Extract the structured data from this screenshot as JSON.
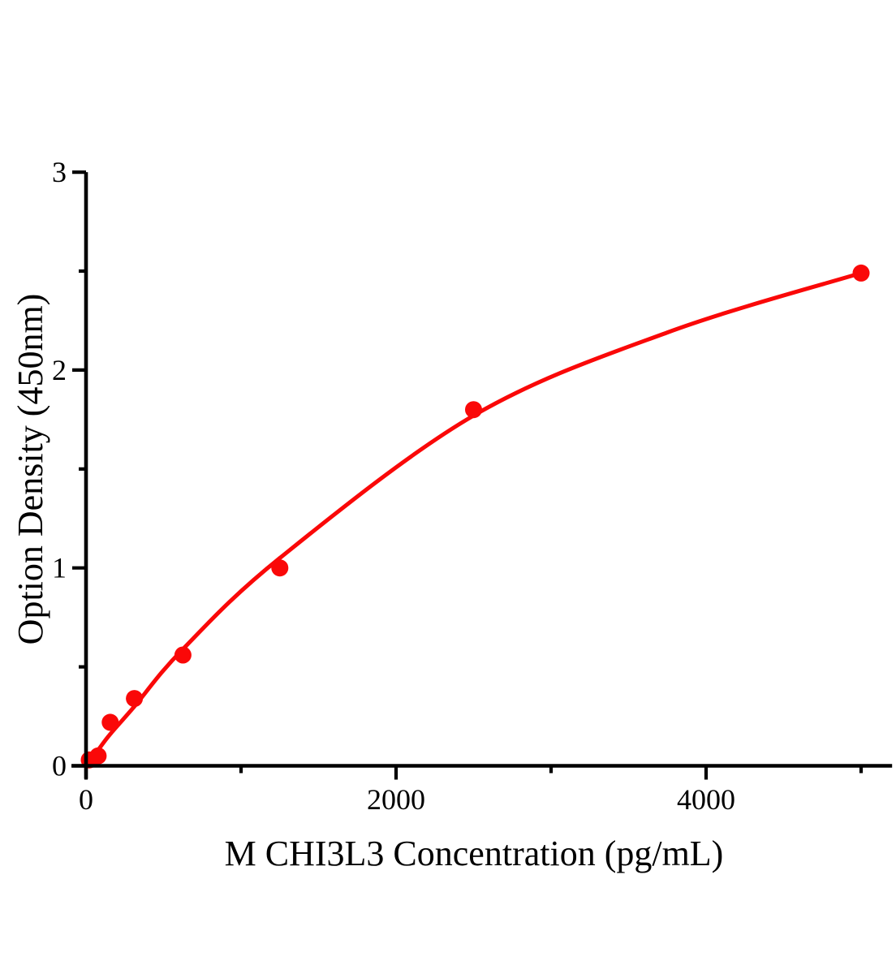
{
  "chart_data": {
    "type": "scatter",
    "title": "",
    "xlabel": "M CHI3L3 Concentration (pg/mL)",
    "ylabel": "Option Density (450nm)",
    "x": [
      78,
      156,
      312,
      625,
      1250,
      2500,
      5000
    ],
    "y": [
      0.05,
      0.22,
      0.34,
      0.56,
      1.0,
      1.8,
      2.49
    ],
    "blank_point": {
      "x": 0,
      "y": 0.03
    },
    "fit_curve": [
      [
        0,
        0.0
      ],
      [
        78,
        0.08
      ],
      [
        156,
        0.16
      ],
      [
        312,
        0.3
      ],
      [
        625,
        0.59
      ],
      [
        1250,
        1.05
      ],
      [
        2500,
        1.77
      ],
      [
        3750,
        2.19
      ],
      [
        5000,
        2.49
      ]
    ],
    "xlim": [
      0,
      5200
    ],
    "ylim": [
      0,
      3
    ],
    "x_major_ticks": [
      0,
      2000,
      4000
    ],
    "x_minor_ticks": [
      1000,
      3000,
      5000
    ],
    "y_major_ticks": [
      0,
      1,
      2,
      3
    ],
    "y_minor_ticks": [
      0.5,
      1.5,
      2.5
    ],
    "grid": false,
    "legend": null,
    "colors": {
      "curve": "#fa0808",
      "marker": "#fa0808",
      "axis": "#000000",
      "text": "#000000",
      "background": "#ffffff"
    }
  }
}
